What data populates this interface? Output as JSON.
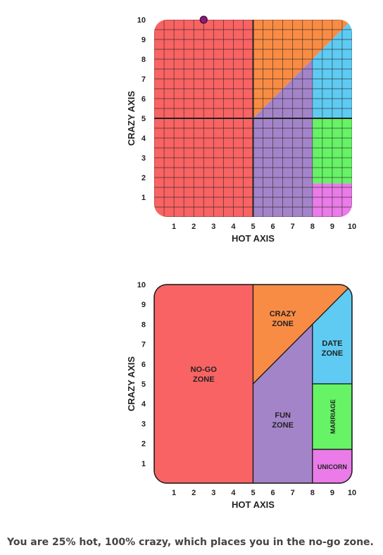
{
  "colors": {
    "nogo": "#f96363",
    "crazy": "#f98c44",
    "fun": "#a484c9",
    "date": "#5fcbf3",
    "marriage": "#66f366",
    "unicorn": "#ea7be8",
    "grid": "#222222",
    "marker": "#8b1a7a"
  },
  "chart_data": [
    {
      "type": "scatter",
      "name": "grid-chart",
      "xlabel": "HOT AXIS",
      "ylabel": "CRAZY AXIS",
      "xlim": [
        0,
        10
      ],
      "ylim": [
        0,
        10
      ],
      "x_ticks": [
        "1",
        "2",
        "3",
        "4",
        "5",
        "6",
        "7",
        "8",
        "9",
        "10"
      ],
      "y_ticks": [
        "1",
        "2",
        "3",
        "4",
        "5",
        "6",
        "7",
        "8",
        "9",
        "10"
      ],
      "grid": true,
      "points": [
        {
          "x": 2.5,
          "y": 10
        }
      ]
    },
    {
      "type": "area",
      "name": "zone-chart",
      "xlabel": "HOT AXIS",
      "ylabel": "CRAZY AXIS",
      "xlim": [
        0,
        10
      ],
      "ylim": [
        0,
        10
      ],
      "x_ticks": [
        "1",
        "2",
        "3",
        "4",
        "5",
        "6",
        "7",
        "8",
        "9",
        "10"
      ],
      "y_ticks": [
        "1",
        "2",
        "3",
        "4",
        "5",
        "6",
        "7",
        "8",
        "9",
        "10"
      ],
      "grid": false,
      "zones": [
        {
          "key": "nogo",
          "label_lines": [
            "NO-GO",
            "ZONE"
          ],
          "polygon": [
            [
              0,
              0
            ],
            [
              5,
              0
            ],
            [
              5,
              10
            ],
            [
              0,
              10
            ]
          ],
          "label_at": [
            2.5,
            5.5
          ]
        },
        {
          "key": "crazy",
          "label_lines": [
            "CRAZY",
            "ZONE"
          ],
          "polygon": [
            [
              5,
              5
            ],
            [
              10,
              10
            ],
            [
              5,
              10
            ]
          ],
          "label_at": [
            6.5,
            8.3
          ]
        },
        {
          "key": "fun",
          "label_lines": [
            "FUN",
            "ZONE"
          ],
          "polygon": [
            [
              5,
              0
            ],
            [
              8,
              0
            ],
            [
              8,
              8
            ],
            [
              5,
              5
            ]
          ],
          "label_at": [
            6.5,
            3.2
          ]
        },
        {
          "key": "date",
          "label_lines": [
            "DATE",
            "ZONE"
          ],
          "polygon": [
            [
              8,
              5
            ],
            [
              10,
              5
            ],
            [
              10,
              10
            ],
            [
              8,
              8
            ]
          ],
          "label_at": [
            9.0,
            6.8
          ]
        },
        {
          "key": "marriage",
          "label_lines": [
            "MARRIAGE"
          ],
          "polygon": [
            [
              8,
              1.7
            ],
            [
              10,
              1.7
            ],
            [
              10,
              5
            ],
            [
              8,
              5
            ]
          ],
          "label_at": [
            9.0,
            3.35
          ],
          "rotate": -90
        },
        {
          "key": "unicorn",
          "label_lines": [
            "UNICORN"
          ],
          "polygon": [
            [
              8,
              0
            ],
            [
              10,
              0
            ],
            [
              10,
              1.7
            ],
            [
              8,
              1.7
            ]
          ],
          "label_at": [
            9.0,
            0.85
          ]
        }
      ]
    }
  ],
  "result": {
    "text": "You are 25% hot, 100% crazy, which places you in the no-go zone."
  }
}
